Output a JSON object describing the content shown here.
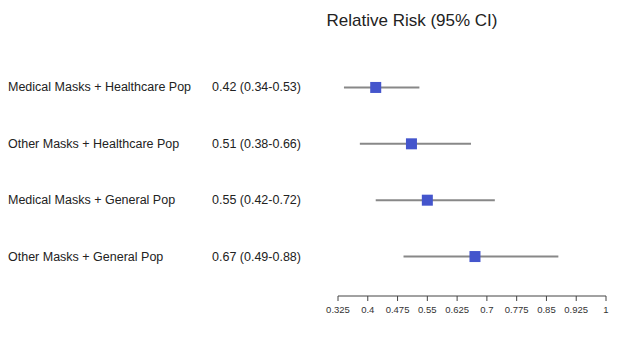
{
  "chart_data": {
    "type": "forest",
    "title": "Relative Risk (95% CI)",
    "categories": [
      "Medical Masks + Healthcare Pop",
      "Other Masks + Healthcare Pop",
      "Medical Masks + General Pop",
      "Other Masks + General Pop"
    ],
    "values": [
      0.42,
      0.51,
      0.55,
      0.67
    ],
    "ci_low": [
      0.34,
      0.38,
      0.42,
      0.49
    ],
    "ci_high": [
      0.53,
      0.66,
      0.72,
      0.88
    ],
    "ci_labels": [
      "0.42 (0.34-0.53)",
      "0.51 (0.38-0.66)",
      "0.55 (0.42-0.72)",
      "0.67 (0.49-0.88)"
    ],
    "color": "#4455cc",
    "xlim": [
      0.325,
      1.0
    ],
    "xticks": [
      0.325,
      0.4,
      0.475,
      0.55,
      0.625,
      0.7,
      0.775,
      0.85,
      0.925,
      1
    ]
  }
}
